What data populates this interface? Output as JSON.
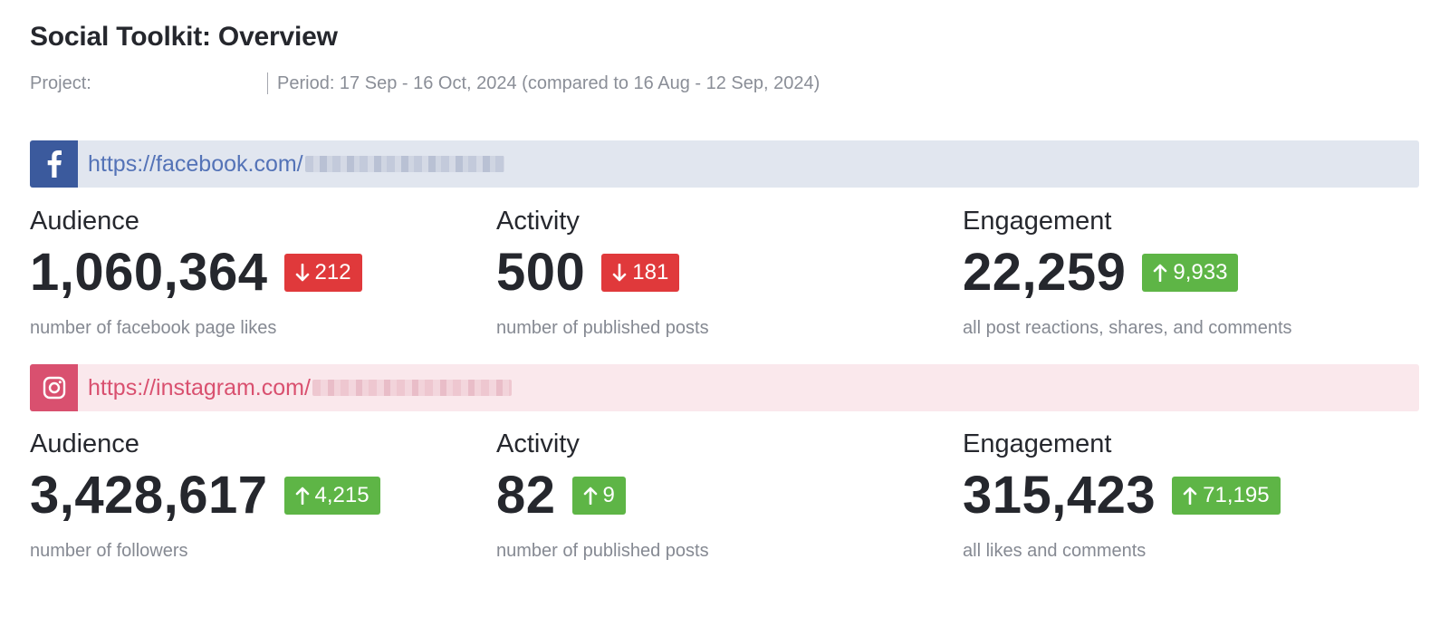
{
  "header": {
    "title": "Social Toolkit: Overview",
    "project_label": "Project:",
    "period": "Period: 17 Sep - 16 Oct, 2024 (compared to 16 Aug - 12 Sep, 2024)"
  },
  "networks": [
    {
      "icon": "facebook-icon",
      "url": "https://facebook.com/",
      "color": "#3b5a9d",
      "metrics": {
        "audience": {
          "label": "Audience",
          "value": "1,060,364",
          "change": "212",
          "direction": "down",
          "description": "number of facebook page likes"
        },
        "activity": {
          "label": "Activity",
          "value": "500",
          "change": "181",
          "direction": "down",
          "description": "number of published posts"
        },
        "engagement": {
          "label": "Engagement",
          "value": "22,259",
          "change": "9,933",
          "direction": "up",
          "description": "all post reactions, shares, and comments"
        }
      }
    },
    {
      "icon": "instagram-icon",
      "url": "https://instagram.com/",
      "color": "#d9506f",
      "metrics": {
        "audience": {
          "label": "Audience",
          "value": "3,428,617",
          "change": "4,215",
          "direction": "up",
          "description": "number of followers"
        },
        "activity": {
          "label": "Activity",
          "value": "82",
          "change": "9",
          "direction": "up",
          "description": "number of published posts"
        },
        "engagement": {
          "label": "Engagement",
          "value": "315,423",
          "change": "71,195",
          "direction": "up",
          "description": "all likes and comments"
        }
      }
    }
  ],
  "colors": {
    "down": "#e0393b",
    "up": "#5eb546"
  }
}
